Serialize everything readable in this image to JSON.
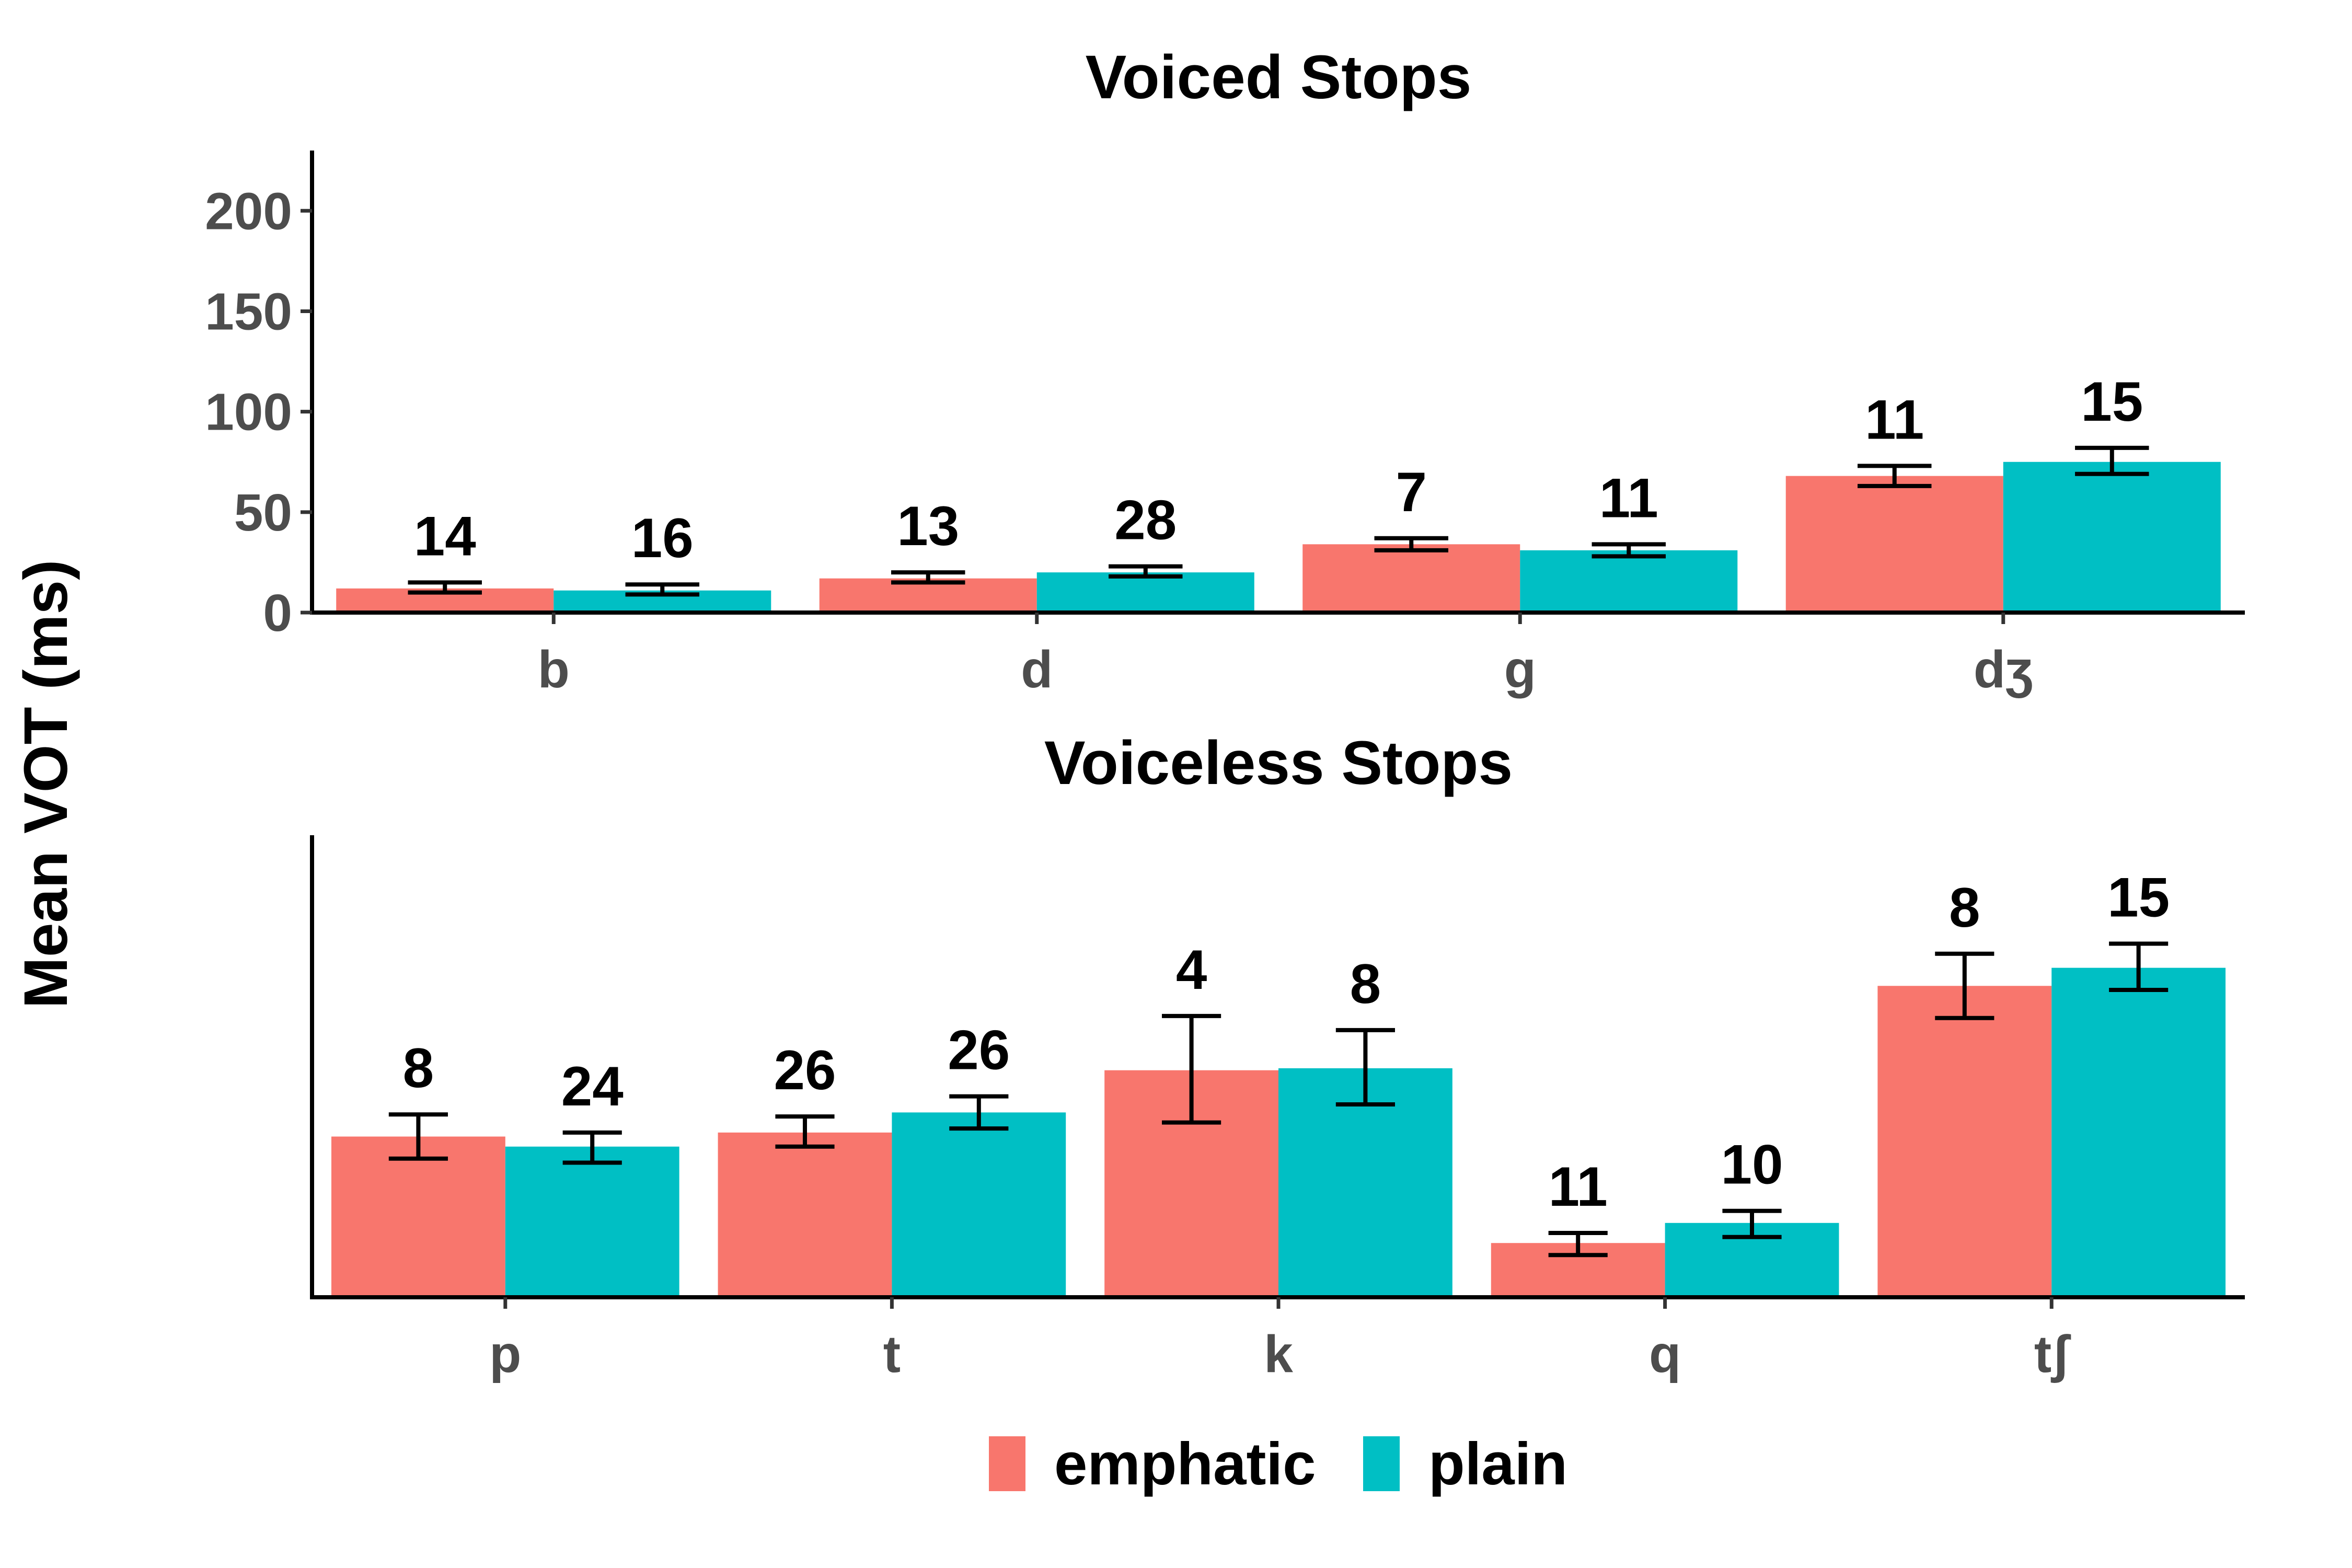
{
  "chart_data": {
    "type": "bar",
    "ylabel": "Mean VOT (ms)",
    "ylim": [
      0,
      230
    ],
    "yticks": [
      0,
      50,
      100,
      150,
      200
    ],
    "legend": {
      "position": "bottom",
      "entries": [
        {
          "name": "emphatic",
          "color": "#F8766D"
        },
        {
          "name": "plain",
          "color": "#00BFC4"
        }
      ]
    },
    "panels": [
      {
        "title": "Voiced Stops",
        "categories": [
          "b",
          "d",
          "g",
          "dʒ"
        ],
        "series": [
          {
            "name": "emphatic",
            "color": "#F8766D",
            "values": [
              12,
              17,
              34,
              68
            ],
            "error_low": [
              10,
              15,
              31,
              63
            ],
            "error_high": [
              15,
              20,
              37,
              73
            ],
            "n_labels": [
              "14",
              "13",
              "7",
              "11"
            ]
          },
          {
            "name": "plain",
            "color": "#00BFC4",
            "values": [
              11,
              20,
              31,
              75
            ],
            "error_low": [
              9,
              18,
              28,
              69
            ],
            "error_high": [
              14,
              23,
              34,
              82
            ],
            "n_labels": [
              "16",
              "28",
              "11",
              "15"
            ]
          }
        ]
      },
      {
        "title": "Voiceless Stops",
        "categories": [
          "p",
          "t",
          "k",
          "q",
          "tʃ"
        ],
        "series": [
          {
            "name": "emphatic",
            "color": "#F8766D",
            "values": [
              80,
              82,
              113,
              27,
              155
            ],
            "error_low": [
              69,
              75,
              87,
              21,
              139
            ],
            "error_high": [
              91,
              90,
              140,
              32,
              171
            ],
            "n_labels": [
              "8",
              "26",
              "4",
              "11",
              "8"
            ]
          },
          {
            "name": "plain",
            "color": "#00BFC4",
            "values": [
              75,
              92,
              114,
              37,
              164
            ],
            "error_low": [
              67,
              84,
              96,
              30,
              153
            ],
            "error_high": [
              82,
              100,
              133,
              43,
              176
            ],
            "n_labels": [
              "24",
              "26",
              "8",
              "10",
              "15"
            ]
          }
        ]
      }
    ]
  }
}
